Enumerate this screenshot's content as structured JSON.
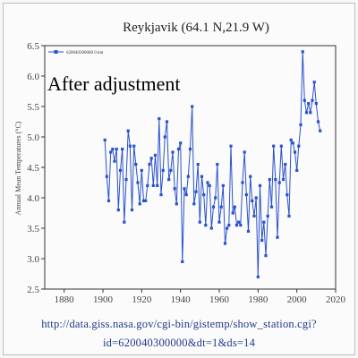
{
  "chart_data": {
    "type": "line",
    "title": "Reykjavik (64.1 N,21.9 W)",
    "ylabel": "Annual Mean Temperatures (°C)",
    "xlim": [
      1870,
      2020
    ],
    "ylim": [
      2.5,
      6.5
    ],
    "x_ticks": [
      "1880",
      "1900",
      "1920",
      "1940",
      "1960",
      "1980",
      "2000",
      "2020"
    ],
    "y_ticks": [
      "2.5",
      "3.0",
      "3.5",
      "4.0",
      "4.5",
      "5.0",
      "5.5",
      "6.0",
      "6.5"
    ],
    "legend": {
      "text": "620040300000 0 km",
      "position": "top-left"
    },
    "annotation": "After adjustment",
    "colors": {
      "line": "#2a52cc",
      "marker": "#2a52cc"
    },
    "series": [
      {
        "x": [
          1901,
          1902,
          1903,
          1904,
          1905,
          1906,
          1907,
          1908,
          1909,
          1910,
          1911,
          1912,
          1913,
          1914,
          1915,
          1916,
          1917,
          1918,
          1919,
          1920,
          1921,
          1922,
          1923,
          1924,
          1925,
          1926,
          1927,
          1928,
          1929,
          1930,
          1931,
          1932,
          1933,
          1934,
          1935,
          1936,
          1937,
          1938,
          1939,
          1940,
          1941,
          1942,
          1943,
          1944,
          1945,
          1946,
          1947,
          1948,
          1949,
          1950,
          1951,
          1952,
          1953,
          1954,
          1955,
          1956,
          1957,
          1958,
          1959,
          1960,
          1961,
          1962,
          1963,
          1964,
          1965,
          1966,
          1967,
          1968,
          1969,
          1970,
          1971,
          1972,
          1973,
          1974,
          1975,
          1976,
          1977,
          1978,
          1979,
          1980,
          1981,
          1982,
          1983,
          1984,
          1985,
          1986,
          1987,
          1988,
          1989,
          1990,
          1991,
          1992,
          1993,
          1994,
          1995,
          1996,
          1997,
          1998,
          1999,
          2000,
          2001,
          2002,
          2003,
          2004,
          2005,
          2006,
          2007,
          2008,
          2009,
          2010,
          2011,
          2012
        ],
        "values": [
          4.95,
          4.35,
          3.95,
          4.75,
          4.8,
          4.6,
          4.8,
          3.8,
          4.45,
          4.8,
          3.6,
          4.3,
          5.1,
          4.85,
          3.8,
          4.85,
          4.55,
          4.25,
          3.9,
          4.45,
          3.95,
          3.95,
          4.2,
          4.55,
          4.65,
          4.2,
          4.7,
          4.2,
          5.3,
          4.05,
          4.45,
          5.0,
          5.25,
          4.3,
          4.45,
          4.75,
          4.15,
          3.9,
          4.8,
          4.9,
          2.95,
          4.15,
          4.05,
          4.35,
          4.8,
          5.5,
          3.9,
          4.1,
          4.55,
          3.6,
          4.35,
          4.05,
          3.55,
          4.25,
          4.2,
          3.5,
          3.85,
          4.0,
          4.55,
          3.6,
          3.85,
          4.2,
          3.25,
          3.5,
          3.55,
          4.85,
          3.75,
          3.85,
          3.55,
          3.6,
          3.55,
          4.25,
          4.75,
          4.05,
          3.45,
          4.35,
          3.95,
          3.7,
          4.0,
          2.7,
          4.2,
          3.3,
          3.6,
          3.05,
          3.7,
          4.3,
          3.85,
          4.85,
          4.3,
          3.35,
          4.25,
          4.85,
          4.3,
          4.55,
          4.05,
          3.7,
          4.95,
          4.9,
          4.75,
          4.45,
          4.85,
          5.2,
          6.4,
          5.6,
          5.4,
          5.55,
          5.4,
          5.6,
          5.9,
          5.55,
          5.25,
          5.1
        ]
      }
    ]
  },
  "footer": {
    "url_line1": "http://data.giss.nasa.gov/cgi-bin/gistemp/show_station.cgi?",
    "url_line2": "id=620040300000&dt=1&ds=14"
  }
}
